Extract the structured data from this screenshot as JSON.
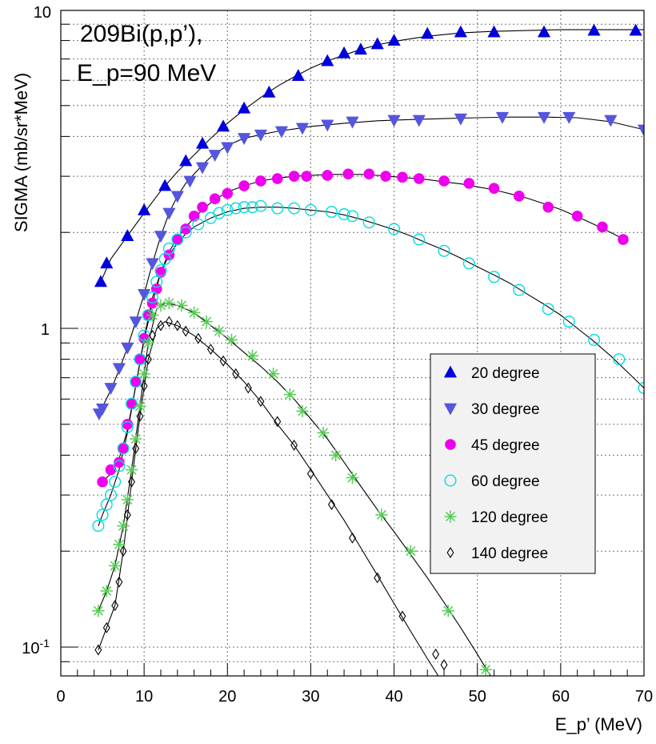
{
  "chart_data": {
    "type": "scatter",
    "title_lines": [
      "209Bi(p,p’),",
      "E_p=90 MeV"
    ],
    "xlabel": "E_p’ (MeV)",
    "ylabel": "SIGMA   (mb/sr*MeV)",
    "xlim": [
      0,
      70
    ],
    "ylim": [
      0.08,
      10
    ],
    "y_scale": "log",
    "grid": true,
    "x_ticks": [
      0,
      10,
      20,
      30,
      40,
      50,
      60,
      70
    ],
    "x_tick_labels": [
      "0",
      "10",
      "20",
      "30",
      "40",
      "50",
      "60",
      "70"
    ],
    "y_major_ticks": [
      {
        "value": 0.1,
        "base": "10",
        "exp": "-1"
      },
      {
        "value": 1,
        "base": "1",
        "exp": ""
      },
      {
        "value": 10,
        "base": "10",
        "exp": ""
      }
    ],
    "legend_position": "center-right",
    "series": [
      {
        "name": "20 degree",
        "marker": "triangle-up",
        "color": "#0000dd",
        "x": [
          4.8,
          5.5,
          8.0,
          10.0,
          12.5,
          15.0,
          17.0,
          19.5,
          22.0,
          25.0,
          28.5,
          32.0,
          34.0,
          36.0,
          38.0,
          40.0,
          44.0,
          48.0,
          52.0,
          58.0,
          64.0,
          69.0
        ],
        "y": [
          1.4,
          1.6,
          1.95,
          2.35,
          2.8,
          3.35,
          3.8,
          4.3,
          4.9,
          5.5,
          6.2,
          6.9,
          7.3,
          7.5,
          7.8,
          8.0,
          8.4,
          8.5,
          8.5,
          8.5,
          8.6,
          8.6
        ],
        "curve_x": [
          4.8,
          6,
          8,
          10,
          12,
          14,
          16,
          18,
          20,
          22,
          24,
          26,
          28,
          30,
          32,
          34,
          36,
          38,
          40,
          42,
          44,
          46,
          48,
          50,
          52,
          56,
          60,
          64,
          66,
          70
        ],
        "curve_y": [
          1.4,
          1.65,
          1.95,
          2.3,
          2.7,
          3.1,
          3.5,
          3.95,
          4.4,
          4.85,
          5.3,
          5.75,
          6.15,
          6.55,
          6.9,
          7.2,
          7.5,
          7.75,
          7.95,
          8.1,
          8.25,
          8.35,
          8.45,
          8.5,
          8.55,
          8.6,
          8.65,
          8.65,
          8.65,
          8.65
        ]
      },
      {
        "name": "30 degree",
        "marker": "triangle-down",
        "color": "#5555dd",
        "x": [
          4.6,
          5.0,
          6.0,
          7.0,
          8.0,
          9.0,
          10.0,
          11.0,
          12.0,
          13.0,
          14.0,
          15.5,
          17.0,
          18.5,
          20.0,
          22.0,
          24.0,
          26.5,
          29.0,
          32.0,
          35.0,
          40.0,
          43.0,
          48.0,
          53.0,
          58.0,
          61.0,
          66.0,
          70.0
        ],
        "y": [
          0.54,
          0.56,
          0.65,
          0.75,
          0.87,
          1.05,
          1.28,
          1.6,
          1.95,
          2.3,
          2.6,
          2.9,
          3.2,
          3.5,
          3.7,
          3.95,
          4.05,
          4.15,
          4.25,
          4.35,
          4.45,
          4.5,
          4.5,
          4.55,
          4.6,
          4.6,
          4.6,
          4.5,
          4.2
        ],
        "curve_x": [
          4.6,
          6,
          7,
          8,
          9,
          10,
          11,
          12,
          13,
          14,
          15,
          16,
          17,
          18,
          20,
          22,
          24,
          26,
          28,
          30,
          34,
          38,
          42,
          46,
          50,
          54,
          58,
          62,
          66,
          70
        ],
        "curve_y": [
          0.54,
          0.64,
          0.74,
          0.87,
          1.05,
          1.28,
          1.6,
          1.95,
          2.3,
          2.6,
          2.85,
          3.05,
          3.25,
          3.45,
          3.75,
          3.95,
          4.05,
          4.15,
          4.22,
          4.3,
          4.4,
          4.48,
          4.52,
          4.55,
          4.58,
          4.6,
          4.6,
          4.58,
          4.45,
          4.2
        ]
      },
      {
        "name": "45 degree",
        "marker": "circle-filled",
        "color": "#ee00ee",
        "x": [
          5.0,
          6.0,
          7.0,
          7.5,
          8.0,
          8.5,
          9.0,
          9.5,
          10.0,
          10.5,
          11.0,
          11.5,
          12.0,
          13.0,
          14.0,
          15.0,
          16.0,
          17.0,
          18.5,
          20.0,
          22.0,
          24.0,
          26.0,
          28.0,
          29.5,
          32.0,
          34.5,
          37.0,
          39.0,
          41.0,
          43.0,
          46.0,
          49.0,
          52.0,
          55.0,
          58.5,
          62.0,
          65.0,
          67.5
        ],
        "y": [
          0.33,
          0.36,
          0.38,
          0.42,
          0.5,
          0.58,
          0.68,
          0.8,
          0.93,
          1.1,
          1.2,
          1.33,
          1.5,
          1.7,
          1.9,
          2.05,
          2.25,
          2.4,
          2.55,
          2.65,
          2.8,
          2.9,
          2.95,
          3.0,
          3.0,
          3.02,
          3.05,
          3.05,
          3.0,
          2.98,
          2.95,
          2.9,
          2.85,
          2.75,
          2.6,
          2.4,
          2.25,
          2.08,
          1.9
        ],
        "curve_x": [
          5,
          6,
          7,
          8,
          9,
          10,
          11,
          12,
          13,
          14,
          15,
          16,
          17,
          18,
          19,
          20,
          22,
          24,
          26,
          28,
          30,
          32,
          34,
          36,
          38,
          40,
          42,
          44,
          46,
          48,
          50,
          52,
          54,
          56,
          58,
          60,
          62,
          64,
          66,
          68
        ],
        "curve_y": [
          0.33,
          0.35,
          0.39,
          0.48,
          0.66,
          0.92,
          1.2,
          1.5,
          1.74,
          1.92,
          2.08,
          2.22,
          2.35,
          2.48,
          2.58,
          2.68,
          2.8,
          2.9,
          2.96,
          3.0,
          3.02,
          3.04,
          3.04,
          3.04,
          3.02,
          2.99,
          2.96,
          2.93,
          2.88,
          2.84,
          2.78,
          2.72,
          2.64,
          2.56,
          2.46,
          2.36,
          2.24,
          2.12,
          2.0,
          1.88
        ]
      },
      {
        "name": "60 degree",
        "marker": "circle-open",
        "color": "#00dddd",
        "x": [
          4.5,
          5.0,
          5.5,
          6.0,
          6.5,
          7.0,
          7.5,
          8.0,
          8.5,
          9.0,
          9.5,
          10.0,
          10.5,
          11.0,
          11.5,
          12.0,
          12.5,
          13.0,
          14.0,
          15.0,
          16.5,
          18.0,
          19.0,
          20.0,
          21.0,
          22.0,
          23.0,
          24.0,
          26.0,
          28.0,
          30.0,
          32.5,
          34.0,
          35.0,
          37.0,
          40.0,
          43.0,
          46.0,
          49.0,
          52.0,
          55.0,
          58.5,
          61.0,
          64.0,
          67.0,
          70.0
        ],
        "y": [
          0.24,
          0.26,
          0.28,
          0.3,
          0.33,
          0.37,
          0.42,
          0.49,
          0.58,
          0.68,
          0.8,
          0.95,
          1.1,
          1.25,
          1.4,
          1.52,
          1.65,
          1.78,
          1.9,
          2.0,
          2.12,
          2.22,
          2.3,
          2.35,
          2.38,
          2.4,
          2.4,
          2.42,
          2.38,
          2.38,
          2.35,
          2.32,
          2.28,
          2.25,
          2.15,
          2.05,
          1.9,
          1.75,
          1.6,
          1.45,
          1.32,
          1.15,
          1.05,
          0.92,
          0.8,
          0.65
        ],
        "curve_x": [
          4.5,
          5,
          6,
          7,
          8,
          9,
          10,
          11,
          12,
          13,
          14,
          15,
          16,
          18,
          20,
          22,
          24,
          26,
          28,
          30,
          32,
          34,
          36,
          38,
          40,
          42,
          44,
          46,
          48,
          50,
          52,
          54,
          56,
          58,
          60,
          62,
          64,
          66,
          68,
          70
        ],
        "curve_y": [
          0.24,
          0.26,
          0.3,
          0.36,
          0.47,
          0.66,
          0.93,
          1.25,
          1.5,
          1.7,
          1.85,
          1.98,
          2.08,
          2.22,
          2.32,
          2.38,
          2.4,
          2.4,
          2.38,
          2.35,
          2.32,
          2.27,
          2.2,
          2.12,
          2.04,
          1.95,
          1.85,
          1.76,
          1.66,
          1.56,
          1.47,
          1.38,
          1.28,
          1.19,
          1.1,
          1.0,
          0.91,
          0.82,
          0.73,
          0.65
        ]
      },
      {
        "name": "120 degree",
        "marker": "asterisk",
        "color": "#55cc55",
        "x": [
          4.5,
          5.5,
          6.5,
          7.0,
          7.5,
          8.0,
          8.5,
          9.0,
          9.5,
          10.0,
          10.5,
          11.0,
          12.0,
          13.0,
          14.5,
          16.0,
          17.5,
          19.0,
          20.5,
          23.0,
          25.5,
          27.5,
          29.0,
          31.5,
          33.0,
          35.0,
          38.5,
          42.0,
          46.5,
          51.0
        ],
        "y": [
          0.13,
          0.15,
          0.18,
          0.21,
          0.24,
          0.29,
          0.36,
          0.45,
          0.57,
          0.72,
          0.9,
          1.1,
          1.18,
          1.2,
          1.18,
          1.12,
          1.05,
          0.98,
          0.92,
          0.82,
          0.72,
          0.62,
          0.55,
          0.47,
          0.4,
          0.34,
          0.26,
          0.2,
          0.13,
          0.085
        ],
        "curve_x": [
          4.5,
          5.5,
          6.5,
          7.5,
          8.5,
          9.5,
          10.5,
          11.5,
          12.5,
          14,
          16,
          18,
          20,
          22,
          24,
          26,
          28,
          30,
          32,
          34,
          36,
          38,
          40,
          42,
          44,
          46,
          48,
          50,
          52
        ],
        "curve_y": [
          0.13,
          0.15,
          0.18,
          0.24,
          0.36,
          0.57,
          0.9,
          1.15,
          1.2,
          1.18,
          1.12,
          1.02,
          0.93,
          0.84,
          0.76,
          0.68,
          0.6,
          0.52,
          0.45,
          0.38,
          0.32,
          0.27,
          0.23,
          0.195,
          0.165,
          0.138,
          0.115,
          0.095,
          0.078
        ]
      },
      {
        "name": "140 degree",
        "marker": "diamond-open",
        "color": "#000000",
        "x": [
          4.5,
          5.5,
          6.5,
          7.0,
          7.5,
          8.0,
          8.5,
          9.0,
          9.5,
          10.0,
          10.5,
          11.0,
          12.0,
          13.0,
          14.0,
          15.0,
          16.5,
          18.0,
          19.5,
          21.0,
          22.5,
          24.0,
          26.0,
          28.0,
          30.0,
          32.5,
          35.0,
          38.0,
          41.0,
          45.0,
          46.0
        ],
        "y": [
          0.098,
          0.115,
          0.135,
          0.16,
          0.2,
          0.26,
          0.33,
          0.42,
          0.53,
          0.66,
          0.8,
          0.95,
          1.02,
          1.05,
          1.02,
          0.98,
          0.93,
          0.86,
          0.79,
          0.72,
          0.65,
          0.59,
          0.51,
          0.43,
          0.35,
          0.28,
          0.22,
          0.165,
          0.125,
          0.095,
          0.088
        ],
        "curve_x": [
          4.5,
          5.5,
          6.5,
          7.5,
          8.5,
          9.5,
          10.5,
          11.5,
          12.5,
          14,
          16,
          18,
          20,
          22,
          24,
          26,
          28,
          30,
          32,
          34,
          36,
          38,
          40,
          42,
          44,
          46,
          47
        ],
        "curve_y": [
          0.098,
          0.115,
          0.135,
          0.2,
          0.33,
          0.53,
          0.8,
          1.0,
          1.05,
          1.02,
          0.95,
          0.86,
          0.77,
          0.68,
          0.59,
          0.5,
          0.43,
          0.36,
          0.3,
          0.25,
          0.205,
          0.168,
          0.137,
          0.112,
          0.092,
          0.076,
          0.07
        ]
      }
    ]
  }
}
